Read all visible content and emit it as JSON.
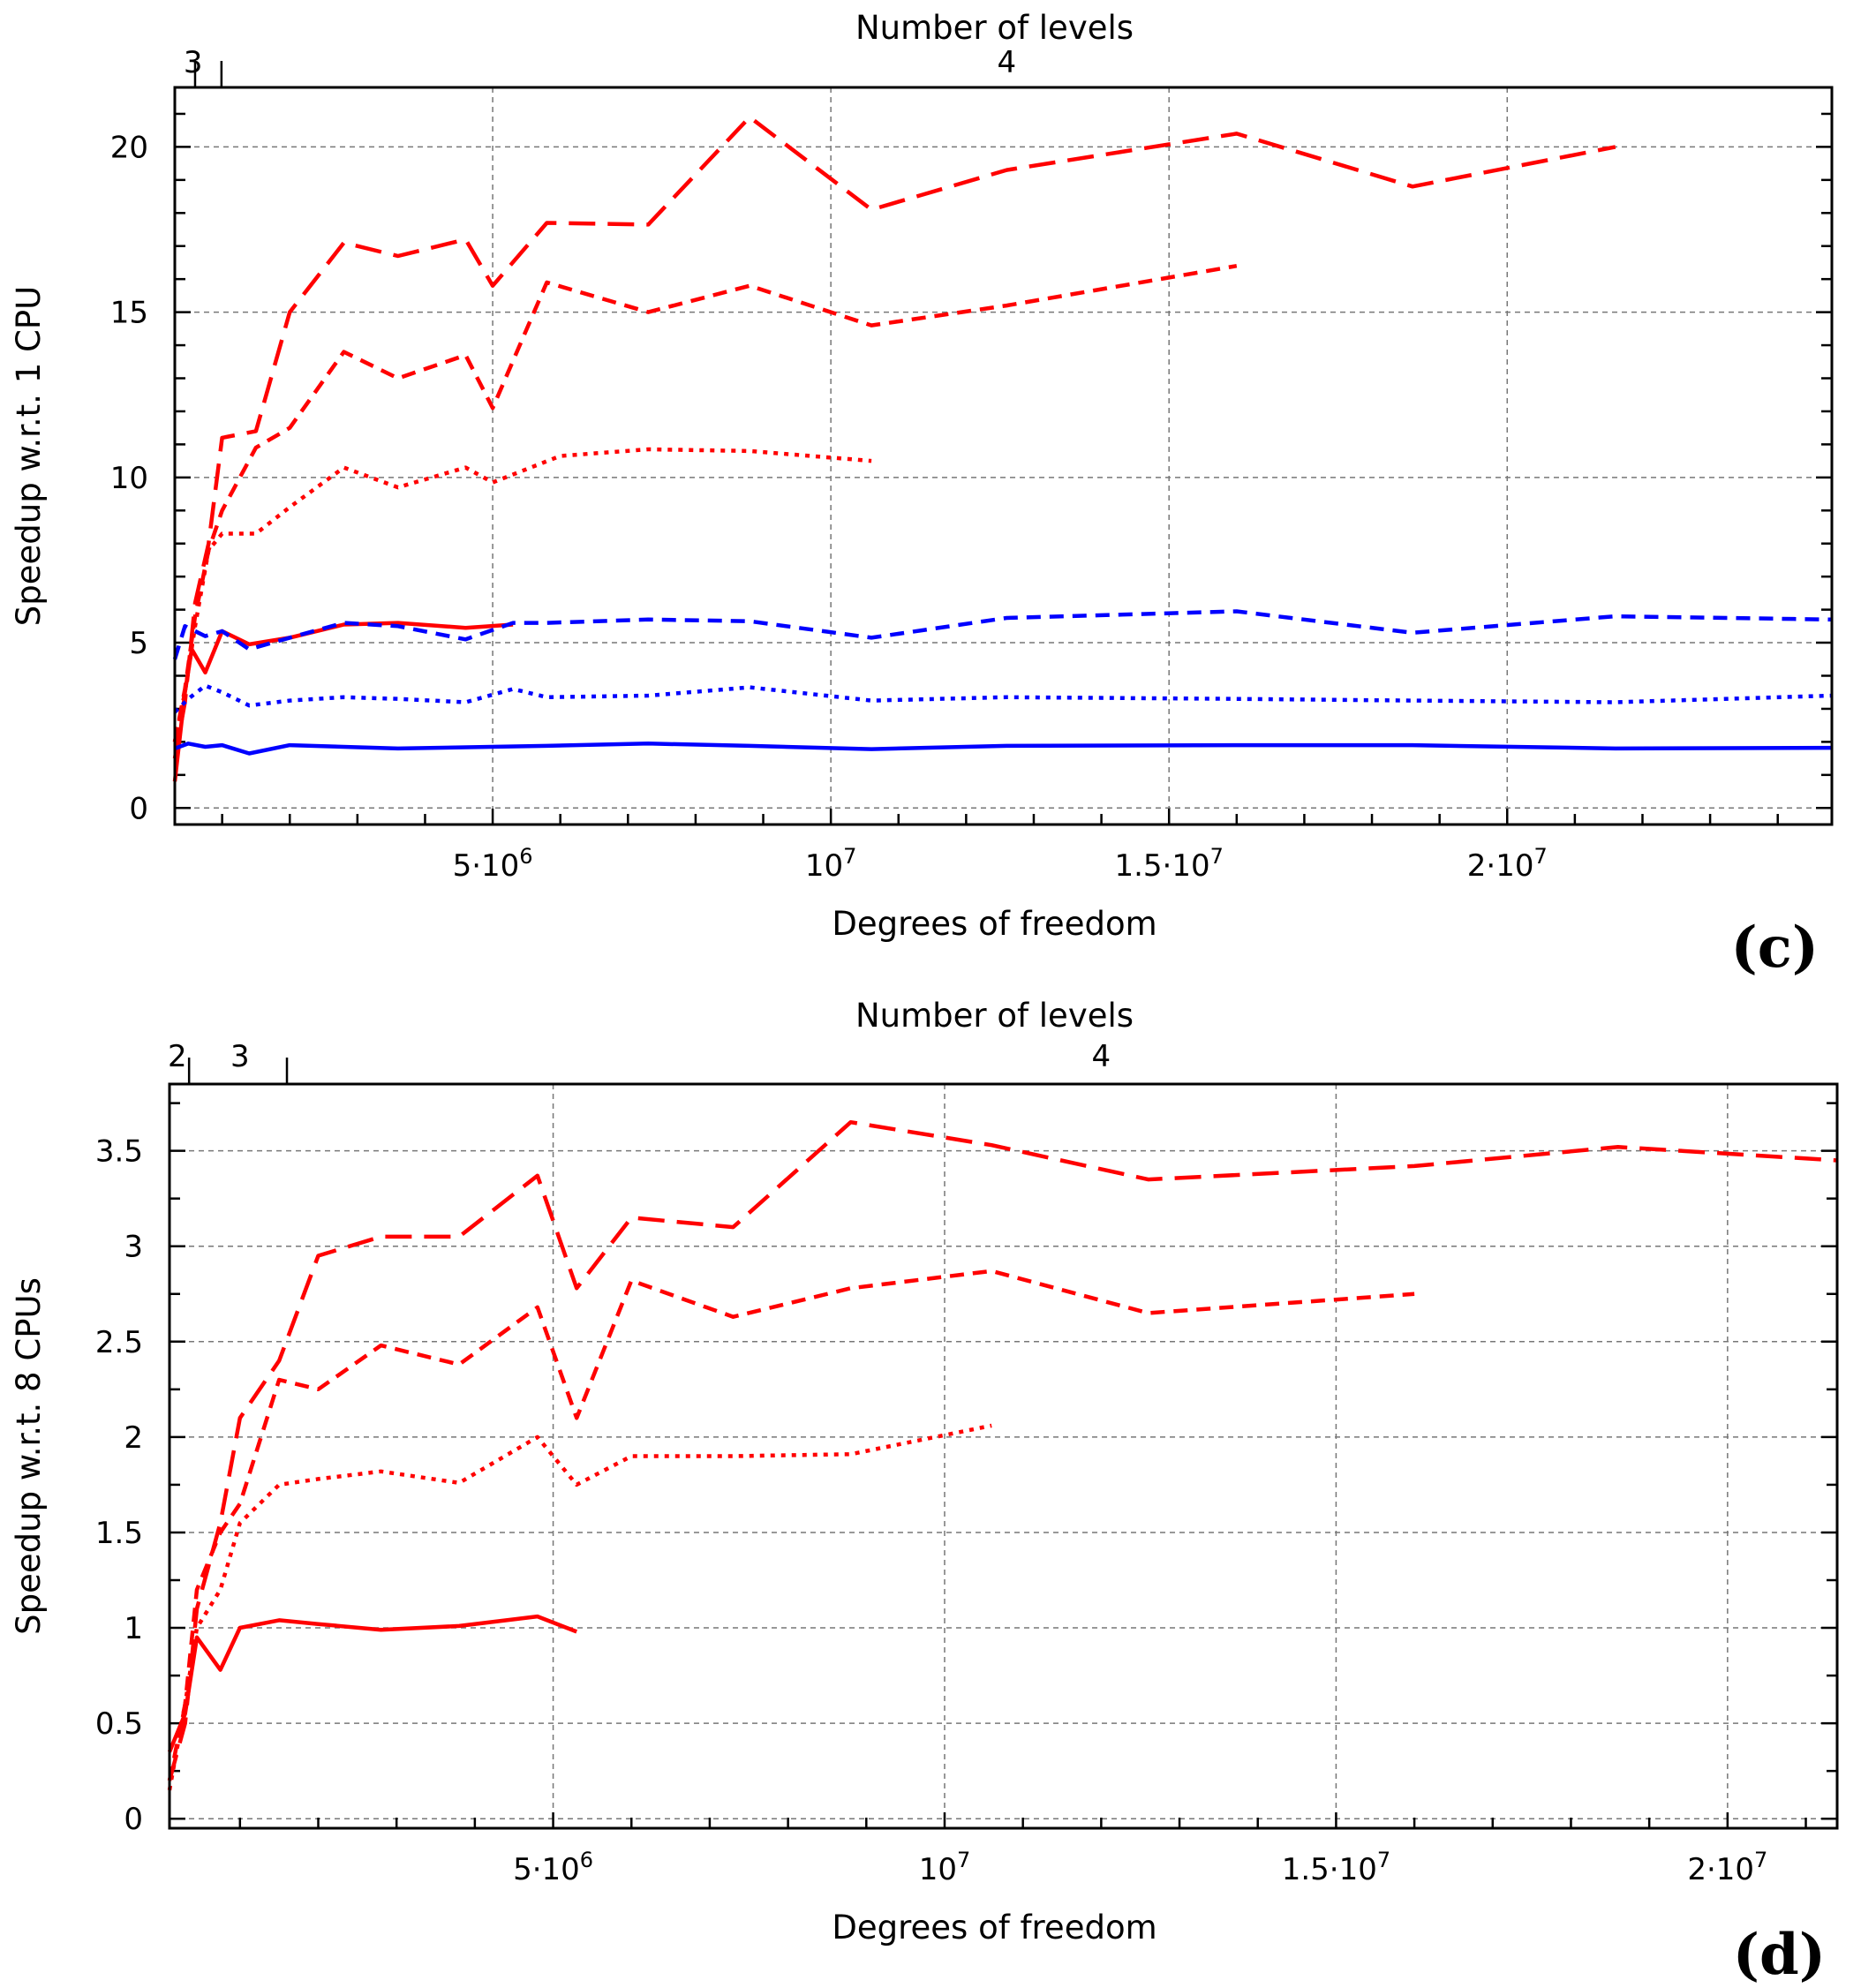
{
  "chart_data": [
    {
      "type": "line",
      "panel_label": "(c)",
      "xlabel": "Degrees of freedom",
      "ylabel": "Speedup w.r.t. 1 CPU",
      "top_axis": {
        "title": "Number of levels",
        "boundaries": [
          600000.0,
          990000.0
        ],
        "labels": [
          {
            "text": "3",
            "x": 570000.0
          },
          {
            "text": "4",
            "x": 12600000.0
          }
        ]
      },
      "xlim": [
        300000.0,
        24800000.0
      ],
      "ylim": [
        -0.5,
        21.8
      ],
      "xticks": [
        {
          "value": 5000000.0,
          "mantissa": "5·10",
          "exp": "6"
        },
        {
          "value": 10000000.0,
          "mantissa": "10",
          "exp": "7"
        },
        {
          "value": 15000000.0,
          "mantissa": "1.5·10",
          "exp": "7"
        },
        {
          "value": 20000000.0,
          "mantissa": "2·10",
          "exp": "7"
        }
      ],
      "yticks": [
        {
          "value": 0,
          "label": "0"
        },
        {
          "value": 5,
          "label": "5"
        },
        {
          "value": 10,
          "label": "10"
        },
        {
          "value": 15,
          "label": "15"
        },
        {
          "value": 20,
          "label": "20"
        }
      ],
      "series": [
        {
          "name": "red-solid",
          "color": "#ff0000",
          "style": "solid",
          "x": [
            300000.0,
            450000.0,
            550000.0,
            750000.0,
            1000000.0,
            1400000.0,
            2000000.0,
            2800000.0,
            3600000.0,
            4600000.0,
            5300000.0
          ],
          "y": [
            0.8,
            3.5,
            4.8,
            4.1,
            5.35,
            4.95,
            5.15,
            5.55,
            5.6,
            5.45,
            5.55
          ]
        },
        {
          "name": "red-dotted",
          "color": "#ff0000",
          "style": "dotted",
          "x": [
            300000.0,
            450000.0,
            600000.0,
            800000.0,
            1000000.0,
            1500000.0,
            2000000.0,
            2800000.0,
            3600000.0,
            4600000.0,
            5000000.0,
            6000000.0,
            7300000.0,
            8800000.0,
            10600000.0
          ],
          "y": [
            2.0,
            3.5,
            5.5,
            7.8,
            8.3,
            8.3,
            9.1,
            10.3,
            9.7,
            10.3,
            9.85,
            10.65,
            10.85,
            10.8,
            10.5
          ]
        },
        {
          "name": "red-dashed",
          "color": "#ff0000",
          "style": "dashed",
          "x": [
            300000.0,
            450000.0,
            600000.0,
            800000.0,
            1000000.0,
            1500000.0,
            2000000.0,
            2800000.0,
            3600000.0,
            4600000.0,
            5000000.0,
            5800000.0,
            7300000.0,
            8800000.0,
            10600000.0,
            12600000.0,
            16000000.0
          ],
          "y": [
            2.0,
            3.6,
            5.8,
            7.8,
            9.0,
            10.9,
            11.5,
            13.8,
            13.0,
            13.7,
            12.1,
            15.9,
            15.0,
            15.8,
            14.6,
            15.2,
            16.4
          ]
        },
        {
          "name": "red-longdash",
          "color": "#ff0000",
          "style": "longdash",
          "x": [
            300000.0,
            450000.0,
            600000.0,
            800000.0,
            1000000.0,
            1500000.0,
            2000000.0,
            2800000.0,
            3600000.0,
            4600000.0,
            5000000.0,
            5800000.0,
            7300000.0,
            8800000.0,
            10600000.0,
            12600000.0,
            16000000.0,
            18600000.0,
            21600000.0
          ],
          "y": [
            1.5,
            3.2,
            6.2,
            8.0,
            11.2,
            11.4,
            15.0,
            17.1,
            16.7,
            17.2,
            15.8,
            17.7,
            17.65,
            20.9,
            18.1,
            19.3,
            20.4,
            18.8,
            20.0
          ]
        },
        {
          "name": "blue-solid",
          "color": "#0000ff",
          "style": "solid",
          "x": [
            300000.0,
            500000.0,
            750000.0,
            1000000.0,
            1400000.0,
            2000000.0,
            3600000.0,
            5800000.0,
            7300000.0,
            8800000.0,
            10600000.0,
            12600000.0,
            16000000.0,
            18600000.0,
            21600000.0,
            24800000.0
          ],
          "y": [
            1.8,
            1.95,
            1.85,
            1.9,
            1.65,
            1.9,
            1.8,
            1.88,
            1.95,
            1.88,
            1.78,
            1.88,
            1.9,
            1.9,
            1.8,
            1.82
          ]
        },
        {
          "name": "blue-dotted",
          "color": "#0000ff",
          "style": "dotted",
          "x": [
            300000.0,
            500000.0,
            750000.0,
            1000000.0,
            1400000.0,
            2000000.0,
            2800000.0,
            3600000.0,
            4600000.0,
            5300000.0,
            5800000.0,
            7300000.0,
            8800000.0,
            10600000.0,
            12600000.0,
            16000000.0,
            18600000.0,
            21600000.0,
            24800000.0
          ],
          "y": [
            2.9,
            3.3,
            3.7,
            3.5,
            3.1,
            3.25,
            3.35,
            3.3,
            3.2,
            3.6,
            3.35,
            3.4,
            3.65,
            3.25,
            3.35,
            3.3,
            3.25,
            3.2,
            3.4
          ]
        },
        {
          "name": "blue-dashed",
          "color": "#0000ff",
          "style": "dashed",
          "x": [
            300000.0,
            450000.0,
            750000.0,
            1000000.0,
            1400000.0,
            2000000.0,
            2800000.0,
            3600000.0,
            4600000.0,
            5300000.0,
            5800000.0,
            7300000.0,
            8800000.0,
            10600000.0,
            12600000.0,
            16000000.0,
            18600000.0,
            21600000.0,
            24800000.0
          ],
          "y": [
            4.5,
            5.5,
            5.2,
            5.35,
            4.8,
            5.15,
            5.6,
            5.5,
            5.1,
            5.6,
            5.6,
            5.7,
            5.65,
            5.15,
            5.75,
            5.95,
            5.3,
            5.8,
            5.7
          ]
        }
      ]
    },
    {
      "type": "line",
      "panel_label": "(d)",
      "xlabel": "Degrees of freedom",
      "ylabel": "Speedup w.r.t. 8 CPUs",
      "top_axis": {
        "title": "Number of levels",
        "boundaries": [
          350000.0,
          1600000.0
        ],
        "labels": [
          {
            "text": "2",
            "x": 200000.0
          },
          {
            "text": "3",
            "x": 1000000.0
          },
          {
            "text": "4",
            "x": 12000000.0
          }
        ]
      },
      "xlim": [
        100000.0,
        21400000.0
      ],
      "ylim": [
        -0.05,
        3.85
      ],
      "xticks": [
        {
          "value": 5000000.0,
          "mantissa": "5·10",
          "exp": "6"
        },
        {
          "value": 10000000.0,
          "mantissa": "10",
          "exp": "7"
        },
        {
          "value": 15000000.0,
          "mantissa": "1.5·10",
          "exp": "7"
        },
        {
          "value": 20000000.0,
          "mantissa": "2·10",
          "exp": "7"
        }
      ],
      "yticks": [
        {
          "value": 0,
          "label": "0"
        },
        {
          "value": 0.5,
          "label": "0.5"
        },
        {
          "value": 1,
          "label": "1"
        },
        {
          "value": 1.5,
          "label": "1.5"
        },
        {
          "value": 2,
          "label": "2"
        },
        {
          "value": 2.5,
          "label": "2.5"
        },
        {
          "value": 3,
          "label": "3"
        },
        {
          "value": 3.5,
          "label": "3.5"
        }
      ],
      "series": [
        {
          "name": "red-solid",
          "color": "#ff0000",
          "style": "solid",
          "x": [
            100000.0,
            300000.0,
            450000.0,
            750000.0,
            1000000.0,
            1500000.0,
            2000000.0,
            2800000.0,
            3800000.0,
            4800000.0,
            5300000.0
          ],
          "y": [
            0.35,
            0.55,
            0.95,
            0.78,
            1.0,
            1.04,
            1.02,
            0.99,
            1.01,
            1.06,
            0.98
          ]
        },
        {
          "name": "red-dotted",
          "color": "#ff0000",
          "style": "dotted",
          "x": [
            100000.0,
            300000.0,
            450000.0,
            750000.0,
            1000000.0,
            1500000.0,
            2000000.0,
            2800000.0,
            3800000.0,
            4800000.0,
            5300000.0,
            6000000.0,
            7300000.0,
            8800000.0,
            10600000.0
          ],
          "y": [
            0.15,
            0.6,
            1.0,
            1.2,
            1.55,
            1.75,
            1.78,
            1.82,
            1.76,
            2.0,
            1.75,
            1.9,
            1.9,
            1.91,
            2.06
          ]
        },
        {
          "name": "red-dashed",
          "color": "#ff0000",
          "style": "dashed",
          "x": [
            100000.0,
            300000.0,
            450000.0,
            750000.0,
            1000000.0,
            1500000.0,
            2000000.0,
            2800000.0,
            3800000.0,
            4800000.0,
            5300000.0,
            6000000.0,
            7300000.0,
            8800000.0,
            10600000.0,
            12600000.0,
            16000000.0
          ],
          "y": [
            0.2,
            0.6,
            1.2,
            1.5,
            1.65,
            2.3,
            2.25,
            2.48,
            2.38,
            2.68,
            2.1,
            2.82,
            2.63,
            2.78,
            2.87,
            2.65,
            2.75
          ]
        },
        {
          "name": "red-longdash",
          "color": "#ff0000",
          "style": "longdash",
          "x": [
            100000.0,
            300000.0,
            450000.0,
            750000.0,
            1000000.0,
            1500000.0,
            2000000.0,
            2800000.0,
            3800000.0,
            4800000.0,
            5300000.0,
            6000000.0,
            7300000.0,
            8800000.0,
            10600000.0,
            12600000.0,
            16000000.0,
            18600000.0,
            21400000.0
          ],
          "y": [
            0.2,
            0.5,
            1.1,
            1.55,
            2.1,
            2.4,
            2.95,
            3.05,
            3.05,
            3.37,
            2.78,
            3.15,
            3.1,
            3.65,
            3.53,
            3.35,
            3.42,
            3.52,
            3.45
          ]
        }
      ]
    }
  ]
}
